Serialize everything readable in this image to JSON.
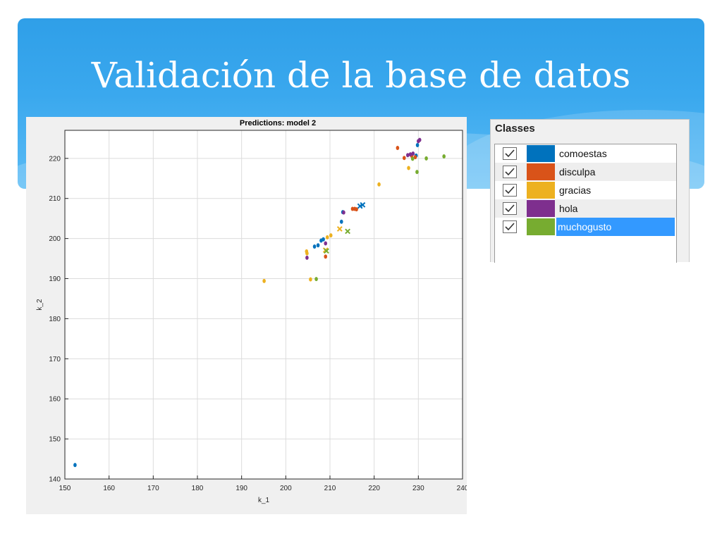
{
  "slide": {
    "title": "Validación de la base de datos"
  },
  "classes_panel": {
    "title": "Classes",
    "items": [
      {
        "label": "comoestas",
        "color": "#0072bd",
        "checked": true
      },
      {
        "label": "disculpa",
        "color": "#d95319",
        "checked": true
      },
      {
        "label": "gracias",
        "color": "#edb120",
        "checked": true
      },
      {
        "label": "hola",
        "color": "#7e2f8e",
        "checked": true
      },
      {
        "label": "muchogusto",
        "color": "#77ac30",
        "checked": true,
        "selected": true
      }
    ],
    "selected_color": "#3399ff"
  },
  "chart_data": {
    "type": "scatter",
    "title": "Predictions: model 2",
    "xlabel": "k_1",
    "ylabel": "k_2",
    "xlim": [
      150,
      240
    ],
    "ylim": [
      140,
      227
    ],
    "xticks": [
      150,
      160,
      170,
      180,
      190,
      200,
      210,
      220,
      230,
      240
    ],
    "yticks": [
      140,
      150,
      160,
      170,
      180,
      190,
      200,
      210,
      220
    ],
    "grid": true,
    "series": [
      {
        "name": "comoestas",
        "color": "#0072bd",
        "points": [
          [
            152.3,
            143.5
          ],
          [
            206.5,
            198
          ],
          [
            207.3,
            198.3
          ],
          [
            208,
            199.5
          ],
          [
            208.5,
            199.8
          ],
          [
            212.6,
            204.2
          ],
          [
            212.9,
            206.6
          ],
          [
            229.5,
            220.7
          ],
          [
            229.8,
            223.3
          ]
        ],
        "wrong": [
          [
            216.8,
            208.1
          ],
          [
            217.4,
            208.4
          ]
        ]
      },
      {
        "name": "disculpa",
        "color": "#d95319",
        "points": [
          [
            209,
            195.5
          ],
          [
            215.1,
            207.4
          ],
          [
            215.6,
            207.4
          ],
          [
            216,
            207.3
          ],
          [
            225.3,
            222.6
          ],
          [
            226.8,
            220.1
          ],
          [
            228.5,
            220.6
          ],
          [
            229.3,
            220.3
          ]
        ],
        "wrong": []
      },
      {
        "name": "gracias",
        "color": "#edb120",
        "points": [
          [
            195.1,
            189.4
          ],
          [
            204.7,
            196.8
          ],
          [
            204.8,
            196.3
          ],
          [
            205.6,
            189.8
          ],
          [
            209.4,
            200.3
          ],
          [
            210.2,
            200.8
          ],
          [
            221.1,
            213.5
          ],
          [
            227.8,
            217.6
          ]
        ],
        "wrong": [
          [
            212.2,
            202.4
          ],
          [
            209,
            197.1
          ]
        ]
      },
      {
        "name": "hola",
        "color": "#7e2f8e",
        "points": [
          [
            204.8,
            195.2
          ],
          [
            209,
            198.8
          ],
          [
            213.1,
            206.5
          ],
          [
            227.6,
            220.8
          ],
          [
            228.2,
            221
          ],
          [
            228.8,
            221.2
          ],
          [
            230,
            224.3
          ],
          [
            230.3,
            224.6
          ]
        ],
        "wrong": []
      },
      {
        "name": "muchogusto",
        "color": "#77ac30",
        "points": [
          [
            206.9,
            189.9
          ],
          [
            228.7,
            219.9
          ],
          [
            229.7,
            216.6
          ],
          [
            231.8,
            220
          ],
          [
            235.8,
            220.5
          ]
        ],
        "wrong": [
          [
            214,
            201.8
          ],
          [
            209.2,
            196.9
          ]
        ]
      }
    ]
  }
}
